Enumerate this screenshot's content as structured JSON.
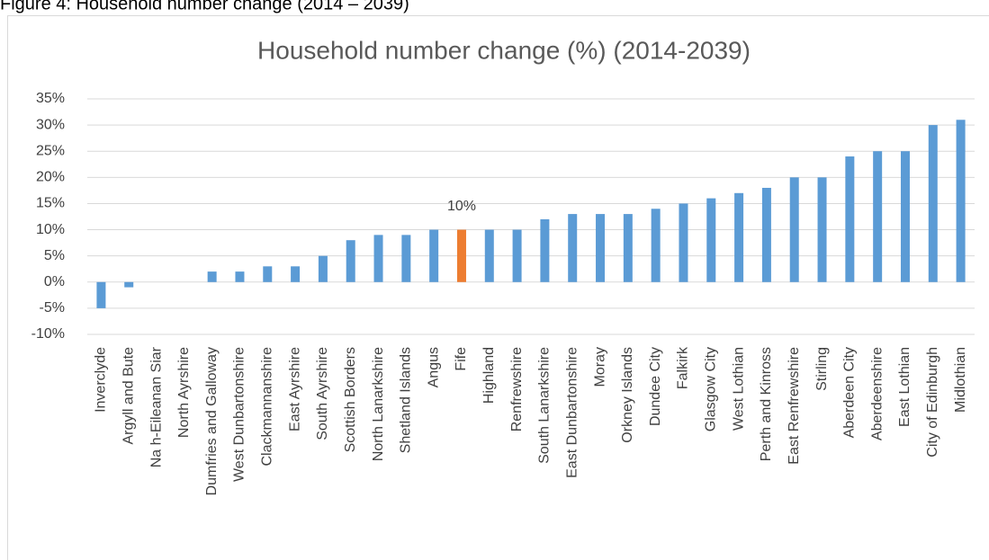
{
  "caption": "Figure 4: Household number change (2014 – 2039)",
  "chart_data": {
    "type": "bar",
    "title": "Household number change (%) (2014-2039)",
    "categories": [
      "Inverclyde",
      "Argyll and Bute",
      "Na h-Eileanan Siar",
      "North Ayrshire",
      "Dumfries and Galloway",
      "West Dunbartonshire",
      "Clackmannanshire",
      "East Ayrshire",
      "South Ayrshire",
      "Scottish Borders",
      "North Lanarkshire",
      "Shetland Islands",
      "Angus",
      "Fife",
      "Highland",
      "Renfrewshire",
      "South Lanarkshire",
      "East Dunbartonshire",
      "Moray",
      "Orkney Islands",
      "Dundee City",
      "Falkirk",
      "Glasgow City",
      "West Lothian",
      "Perth and Kinross",
      "East Renfrewshire",
      "Stirling",
      "Aberdeen City",
      "Aberdeenshire",
      "East Lothian",
      "City of Edinburgh",
      "Midlothian"
    ],
    "values": [
      -5,
      -1,
      0,
      0,
      2,
      2,
      3,
      3,
      5,
      8,
      9,
      9,
      10,
      10,
      10,
      10,
      12,
      13,
      13,
      13,
      14,
      15,
      16,
      17,
      18,
      20,
      20,
      24,
      25,
      25,
      30,
      31
    ],
    "value_labels": [
      null,
      null,
      null,
      null,
      null,
      null,
      null,
      null,
      null,
      null,
      null,
      null,
      null,
      "10%",
      null,
      null,
      null,
      null,
      null,
      null,
      null,
      null,
      null,
      null,
      null,
      null,
      null,
      null,
      null,
      null,
      null,
      null
    ],
    "colors": [
      "#5b9bd5",
      "#5b9bd5",
      "#5b9bd5",
      "#5b9bd5",
      "#5b9bd5",
      "#5b9bd5",
      "#5b9bd5",
      "#5b9bd5",
      "#5b9bd5",
      "#5b9bd5",
      "#5b9bd5",
      "#5b9bd5",
      "#5b9bd5",
      "#ed7d31",
      "#5b9bd5",
      "#5b9bd5",
      "#5b9bd5",
      "#5b9bd5",
      "#5b9bd5",
      "#5b9bd5",
      "#5b9bd5",
      "#5b9bd5",
      "#5b9bd5",
      "#5b9bd5",
      "#5b9bd5",
      "#5b9bd5",
      "#5b9bd5",
      "#5b9bd5",
      "#5b9bd5",
      "#5b9bd5",
      "#5b9bd5",
      "#5b9bd5"
    ],
    "ylim": [
      -10,
      35
    ],
    "yticks": [
      {
        "value": -10,
        "label": "-10%"
      },
      {
        "value": -5,
        "label": "-5%"
      },
      {
        "value": 0,
        "label": "0%"
      },
      {
        "value": 5,
        "label": "5%"
      },
      {
        "value": 10,
        "label": "10%"
      },
      {
        "value": 15,
        "label": "15%"
      },
      {
        "value": 20,
        "label": "20%"
      },
      {
        "value": 25,
        "label": "25%"
      },
      {
        "value": 30,
        "label": "30%"
      },
      {
        "value": 35,
        "label": "35%"
      }
    ],
    "grid": true
  }
}
